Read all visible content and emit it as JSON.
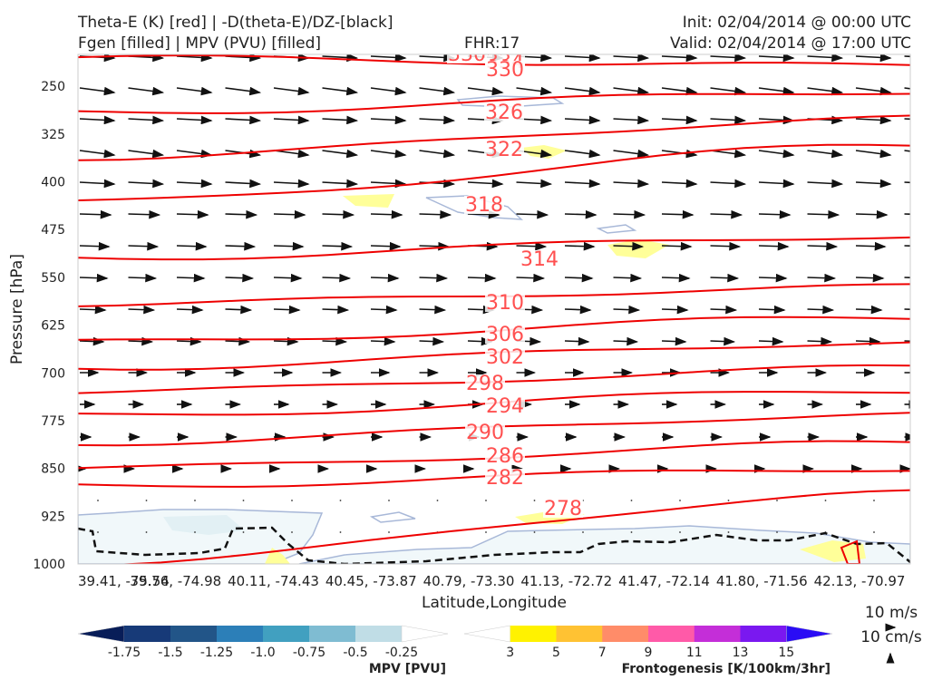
{
  "header": {
    "title_line1": "Theta-E (K) [red] | -D(theta-E)/DZ-[black]",
    "title_line2": "Fgen [filled] | MPV (PVU) [filled]",
    "fhr": "FHR:17",
    "init": "Init: 02/04/2014 @ 00:00 UTC",
    "valid": "Valid: 02/04/2014 @ 17:00 UTC"
  },
  "chart_data": {
    "type": "cross-section",
    "xlabel": "Latitude,Longitude",
    "ylabel": "Pressure [hPa]",
    "x_ticks": [
      "39.41, -75.54",
      "39.76, -74.98",
      "40.11, -74.43",
      "40.45, -73.87",
      "40.79, -73.30",
      "41.13, -72.72",
      "41.47, -72.14",
      "41.80, -71.56",
      "42.13, -70.97"
    ],
    "y_ticks": [
      250,
      325,
      400,
      475,
      550,
      625,
      700,
      775,
      850,
      925,
      1000
    ],
    "ylim": [
      1000,
      200
    ],
    "contour_labels": [
      "330",
      "334",
      "330",
      "326",
      "322",
      "318",
      "314",
      "310",
      "306",
      "302",
      "298",
      "294",
      "290",
      "286",
      "282",
      "278"
    ],
    "theta_e_levels": [
      {
        "level": 330,
        "p": [
          205,
          218
        ]
      },
      {
        "level": 326,
        "p": [
          292,
          258
        ]
      },
      {
        "level": 322,
        "p": [
          362,
          300
        ]
      },
      {
        "level": 318,
        "p": [
          432,
          342
        ]
      },
      {
        "level": 314,
        "p": [
          520,
          485
        ]
      },
      {
        "level": 310,
        "p": [
          592,
          565
        ]
      },
      {
        "level": 306,
        "p": [
          652,
          612
        ]
      },
      {
        "level": 302,
        "p": [
          692,
          652
        ]
      },
      {
        "level": 298,
        "p": [
          730,
          692
        ]
      },
      {
        "level": 294,
        "p": [
          768,
          727
        ]
      },
      {
        "level": 290,
        "p": [
          810,
          765
        ]
      },
      {
        "level": 286,
        "p": [
          850,
          810
        ]
      },
      {
        "level": 282,
        "p": [
          878,
          850
        ]
      },
      {
        "level": 278,
        "p": [
          998,
          888
        ]
      }
    ],
    "colorbars": [
      {
        "name": "MPV [PVU]",
        "ticks": [
          "-1.75",
          "-1.5",
          "-1.25",
          "-1.0",
          "-0.75",
          "-0.5",
          "-0.25"
        ],
        "colors": [
          "#081d58",
          "#173a78",
          "#225588",
          "#2c7fb8",
          "#41a0c0",
          "#7fbcd2",
          "#c0dde6",
          "#ffffff"
        ]
      },
      {
        "name": "Frontogenesis [K/100km/3hr]",
        "ticks": [
          "3",
          "5",
          "7",
          "9",
          "11",
          "13",
          "15"
        ],
        "colors": [
          "#ffffff",
          "#fff200",
          "#ffc233",
          "#ff8c69",
          "#ff5aa8",
          "#c42ed8",
          "#7a18f0",
          "#2a0cf5"
        ]
      }
    ],
    "vector_key": {
      "horizontal": "10 m/s",
      "vertical": "10 cm/s"
    }
  }
}
